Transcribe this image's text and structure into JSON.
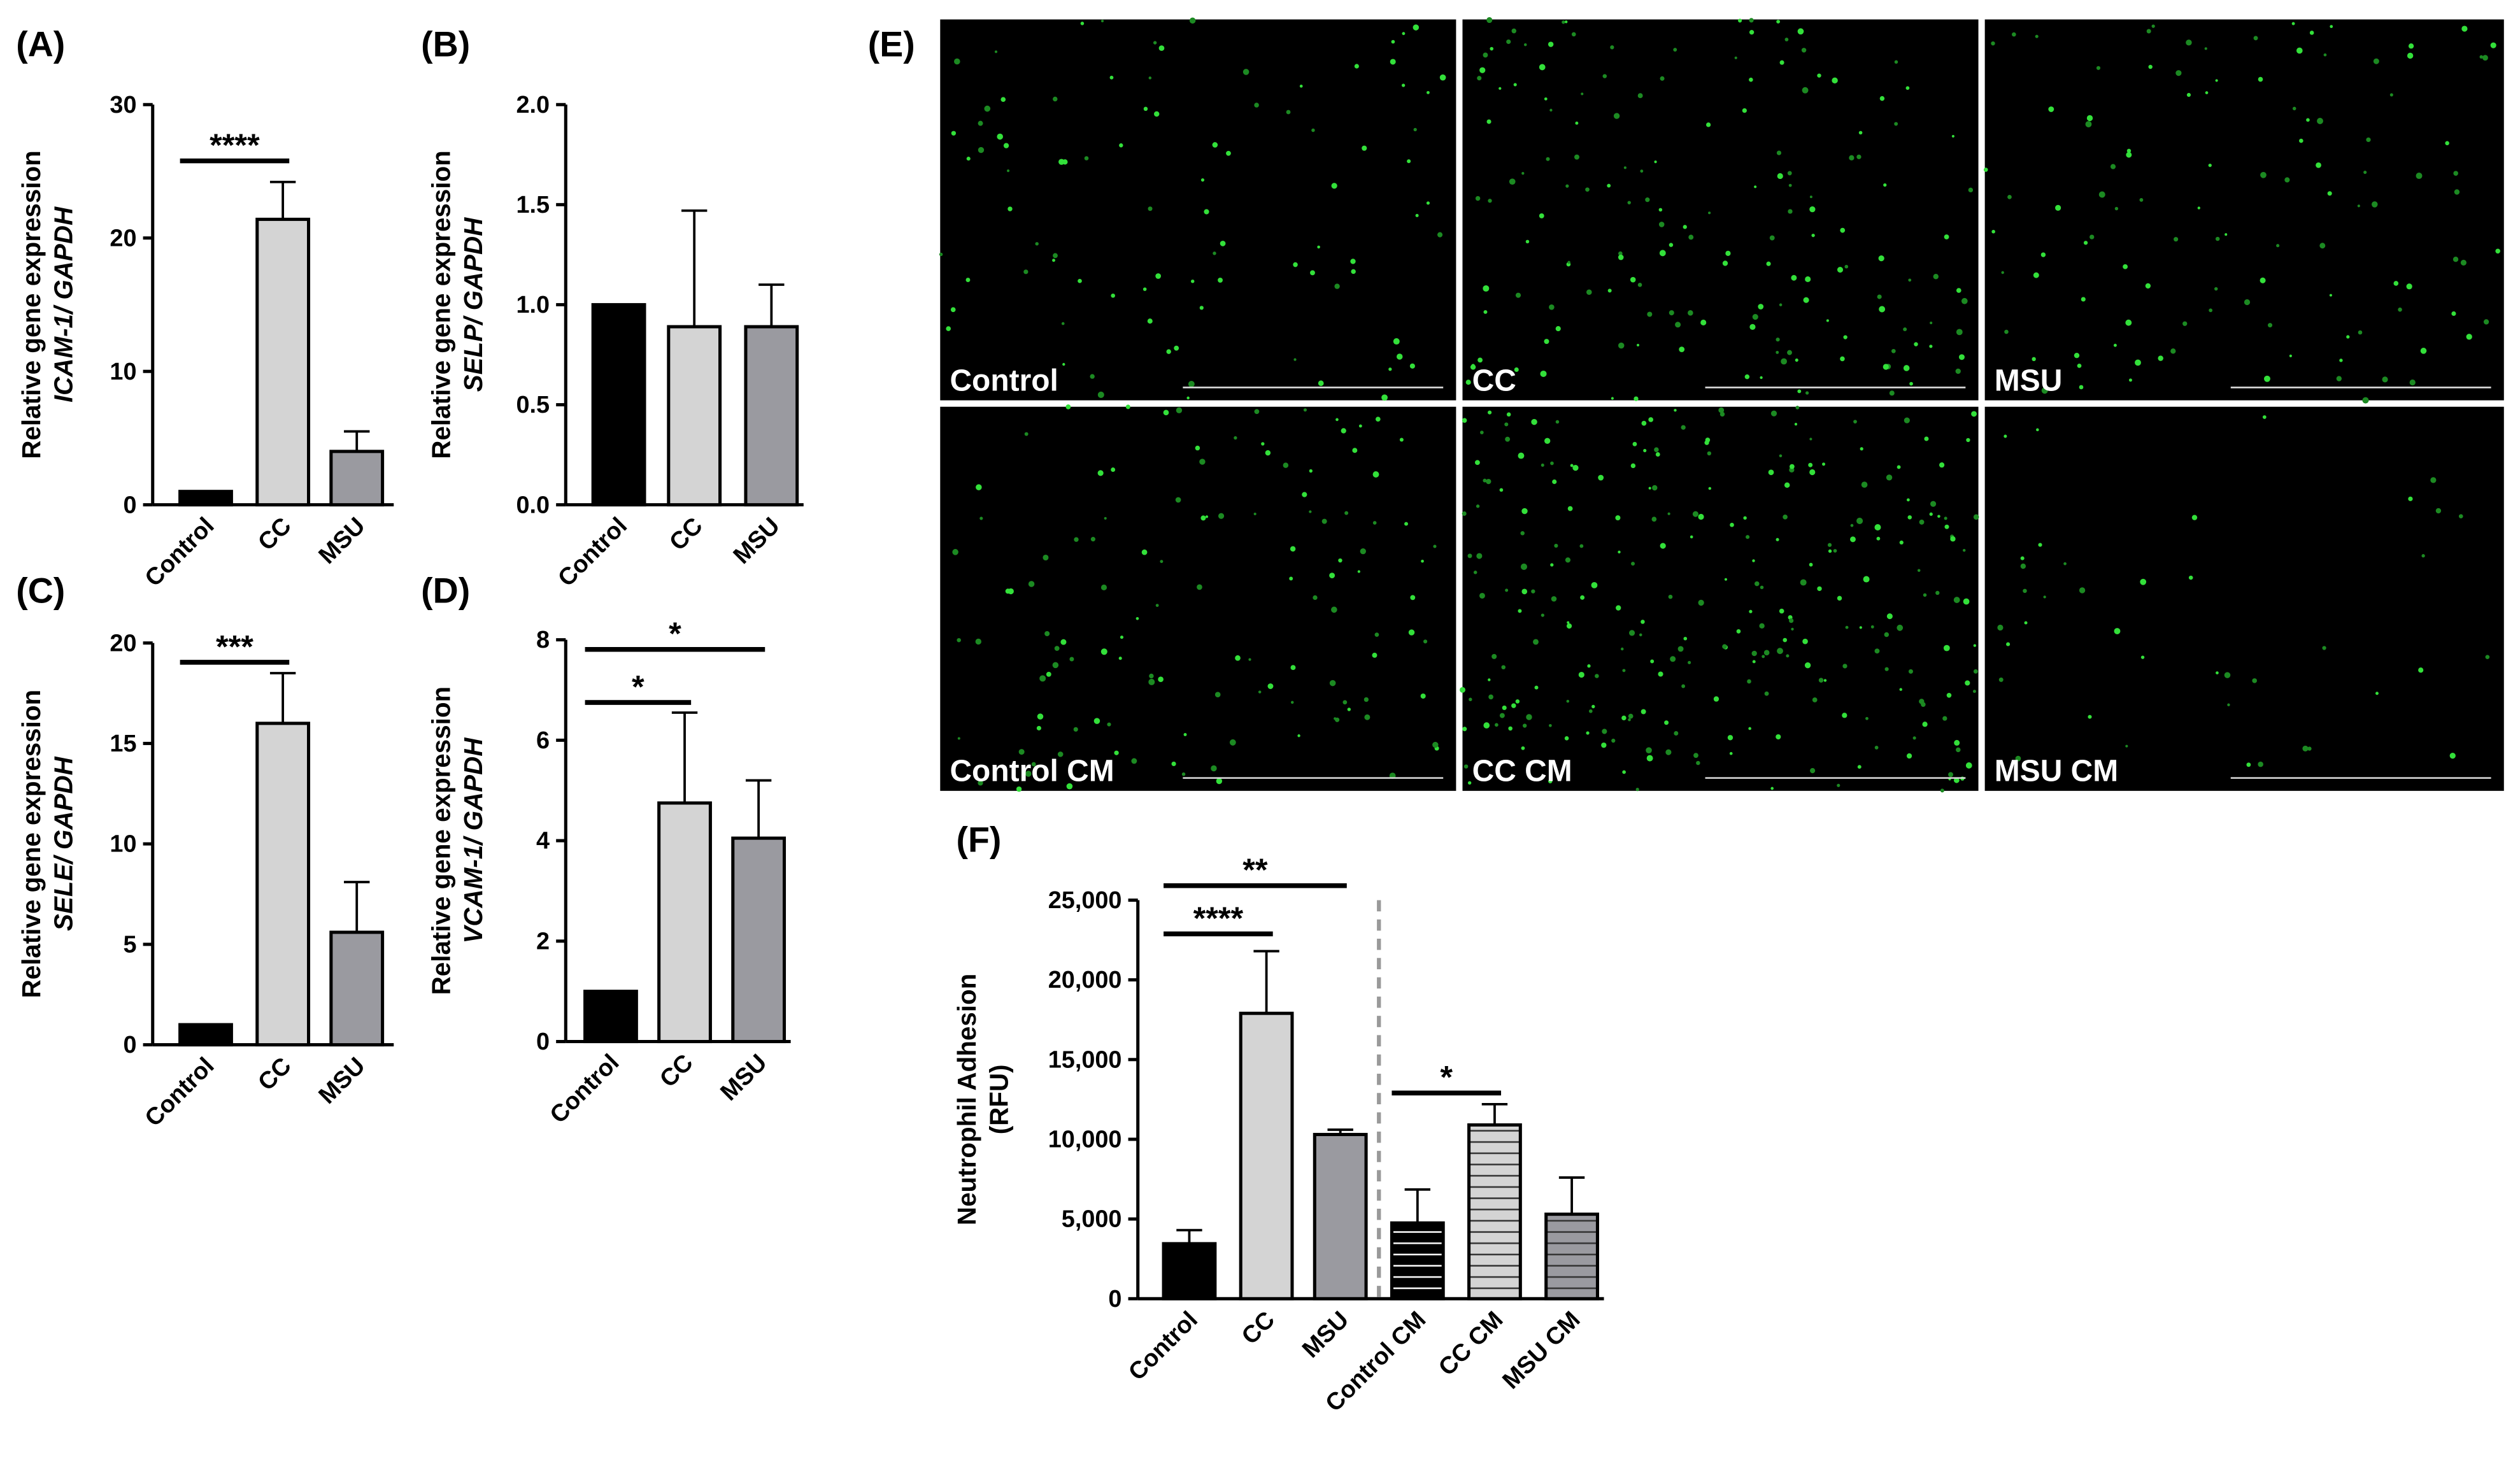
{
  "chart_data": [
    {
      "type": "bar",
      "panel_label": "(A)",
      "ylabel": [
        "Relative gene expression",
        "ICAM-1/ GAPDH"
      ],
      "categories": [
        "Control",
        "CC",
        "MSU"
      ],
      "values": [
        1,
        21.4,
        4
      ],
      "errors": [
        0,
        2.8,
        1.5
      ],
      "colors": [
        "#000000",
        "#d4d4d4",
        "#9a9aa0"
      ],
      "ylim": [
        0,
        30
      ],
      "yticks": [
        0,
        10,
        20,
        30
      ],
      "significance": [
        {
          "label": "****",
          "between": [
            "Control",
            "CC"
          ]
        }
      ]
    },
    {
      "type": "bar",
      "panel_label": "(B)",
      "ylabel": [
        "Relative gene expression",
        "SELP/ GAPDH"
      ],
      "categories": [
        "Control",
        "CC",
        "MSU"
      ],
      "values": [
        1,
        0.89,
        0.89
      ],
      "errors": [
        0,
        0.58,
        0.21
      ],
      "colors": [
        "#000000",
        "#d4d4d4",
        "#9a9aa0"
      ],
      "ylim": [
        0,
        2
      ],
      "yticks": [
        {
          "value": 0,
          "label": "0.0"
        },
        {
          "value": 0.5,
          "label": "0.5"
        },
        {
          "value": 1,
          "label": "1.0"
        },
        {
          "value": 1.5,
          "label": "1.5"
        },
        {
          "value": 2,
          "label": "2.0"
        }
      ],
      "significance": []
    },
    {
      "type": "bar",
      "panel_label": "(C)",
      "ylabel": [
        "Relative gene expression",
        "SELE/ GAPDH"
      ],
      "categories": [
        "Control",
        "CC",
        "MSU"
      ],
      "values": [
        1,
        16,
        5.6
      ],
      "errors": [
        0,
        2.5,
        2.5
      ],
      "colors": [
        "#000000",
        "#d4d4d4",
        "#9a9aa0"
      ],
      "ylim": [
        0,
        20
      ],
      "yticks": [
        0,
        5,
        10,
        15,
        20
      ],
      "significance": [
        {
          "label": "***",
          "between": [
            "Control",
            "CC"
          ]
        }
      ]
    },
    {
      "type": "bar",
      "panel_label": "(D)",
      "ylabel": [
        "Relative gene expression",
        "VCAM-1/ GAPDH"
      ],
      "categories": [
        "Control",
        "CC",
        "MSU"
      ],
      "values": [
        1,
        4.75,
        4.05
      ],
      "errors": [
        0,
        1.8,
        1.15
      ],
      "colors": [
        "#000000",
        "#d4d4d4",
        "#9a9aa0"
      ],
      "ylim": [
        0,
        8
      ],
      "yticks": [
        0,
        2,
        4,
        6,
        8
      ],
      "significance": [
        {
          "label": "*",
          "between": [
            "Control",
            "CC"
          ]
        },
        {
          "label": "*",
          "between": [
            "Control",
            "MSU"
          ]
        }
      ]
    },
    {
      "type": "bar",
      "panel_label": "(F)",
      "ylabel": [
        "Neutrophil Adhesion",
        "(RFU)"
      ],
      "categories": [
        "Control",
        "CC",
        "MSU",
        "Control CM",
        "CC CM",
        "MSU CM"
      ],
      "values": [
        3450,
        17900,
        10300,
        4750,
        10900,
        5300
      ],
      "errors": [
        850,
        3900,
        300,
        2100,
        1300,
        2300
      ],
      "colors": [
        "#000000",
        "#d4d4d4",
        "#9a9aa0",
        "#000000",
        "#d4d4d4",
        "#9a9aa0"
      ],
      "hatched": [
        false,
        false,
        false,
        true,
        true,
        true
      ],
      "ylim": [
        0,
        25000
      ],
      "yticks": [
        0,
        {
          "value": 5000,
          "label": "5,000"
        },
        {
          "value": 10000,
          "label": "10,000"
        },
        {
          "value": 15000,
          "label": "15,000"
        },
        {
          "value": 20000,
          "label": "20,000"
        },
        {
          "value": 25000,
          "label": "25,000"
        }
      ],
      "significance": [
        {
          "label": "****",
          "between": [
            "Control",
            "CC"
          ]
        },
        {
          "label": "**",
          "between": [
            "Control",
            "MSU"
          ]
        },
        {
          "label": "*",
          "between": [
            "Control CM",
            "CC CM"
          ]
        }
      ]
    }
  ],
  "images": {
    "panel_label": "(E)",
    "panels": [
      {
        "label": "Control"
      },
      {
        "label": "CC"
      },
      {
        "label": "MSU"
      },
      {
        "label": "Control CM"
      },
      {
        "label": "CC CM"
      },
      {
        "label": "MSU CM"
      }
    ]
  }
}
